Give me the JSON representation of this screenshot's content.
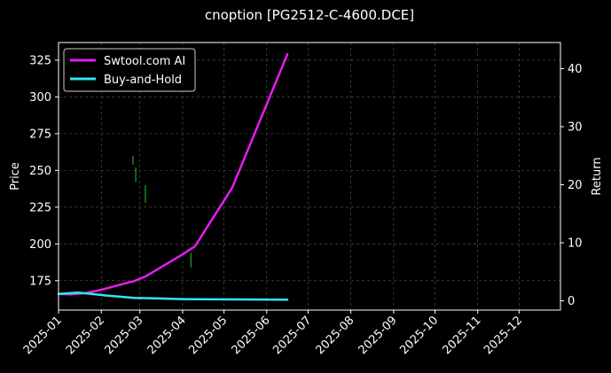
{
  "chart_data": {
    "type": "line",
    "title": "cnoption [PG2512-C-4600.DCE]",
    "ylabel": "Price",
    "y2label": "Return",
    "xlim": [
      "2025-01-01",
      "2025-12-31"
    ],
    "ylim": [
      155,
      337
    ],
    "y2lim": [
      -1.6,
      44.5
    ],
    "x_ticks": [
      "2025-01",
      "2025-02",
      "2025-03",
      "2025-04",
      "2025-05",
      "2025-06",
      "2025-07",
      "2025-08",
      "2025-09",
      "2025-10",
      "2025-11",
      "2025-12"
    ],
    "y_ticks": [
      "175",
      "200",
      "225",
      "250",
      "275",
      "300",
      "325"
    ],
    "y2_ticks": [
      "0",
      "10",
      "20",
      "30",
      "40"
    ],
    "grid": true,
    "legend_placement": "top-left",
    "colors": {
      "background": "#000000",
      "grid": "#5a5a5a",
      "ai": "#e81cf0",
      "hold": "#33e4f0",
      "candle": "#27a327"
    },
    "series": [
      {
        "name": "Swtool.com AI",
        "axis": "return",
        "x": [
          "2025-01-01",
          "2025-01-10",
          "2025-01-20",
          "2025-02-01",
          "2025-02-15",
          "2025-02-25",
          "2025-03-05",
          "2025-03-15",
          "2025-04-01",
          "2025-04-10",
          "2025-05-07",
          "2025-06-16"
        ],
        "values": [
          1.2,
          1.1,
          1.3,
          1.9,
          2.8,
          3.4,
          4.2,
          5.6,
          8.0,
          9.4,
          19.5,
          42.5
        ]
      },
      {
        "name": "Buy-and-Hold",
        "axis": "return",
        "x": [
          "2025-01-01",
          "2025-01-15",
          "2025-01-25",
          "2025-02-05",
          "2025-02-25",
          "2025-03-15",
          "2025-04-01",
          "2025-05-01",
          "2025-06-16"
        ],
        "values": [
          1.2,
          1.4,
          1.2,
          0.9,
          0.5,
          0.4,
          0.3,
          0.25,
          0.2
        ]
      }
    ],
    "candles": [
      {
        "x": "2025-02-24",
        "low": 254,
        "high": 260
      },
      {
        "x": "2025-02-26",
        "low": 242,
        "high": 252
      },
      {
        "x": "2025-03-05",
        "low": 228,
        "high": 240
      },
      {
        "x": "2025-04-07",
        "low": 184,
        "high": 194
      }
    ]
  }
}
